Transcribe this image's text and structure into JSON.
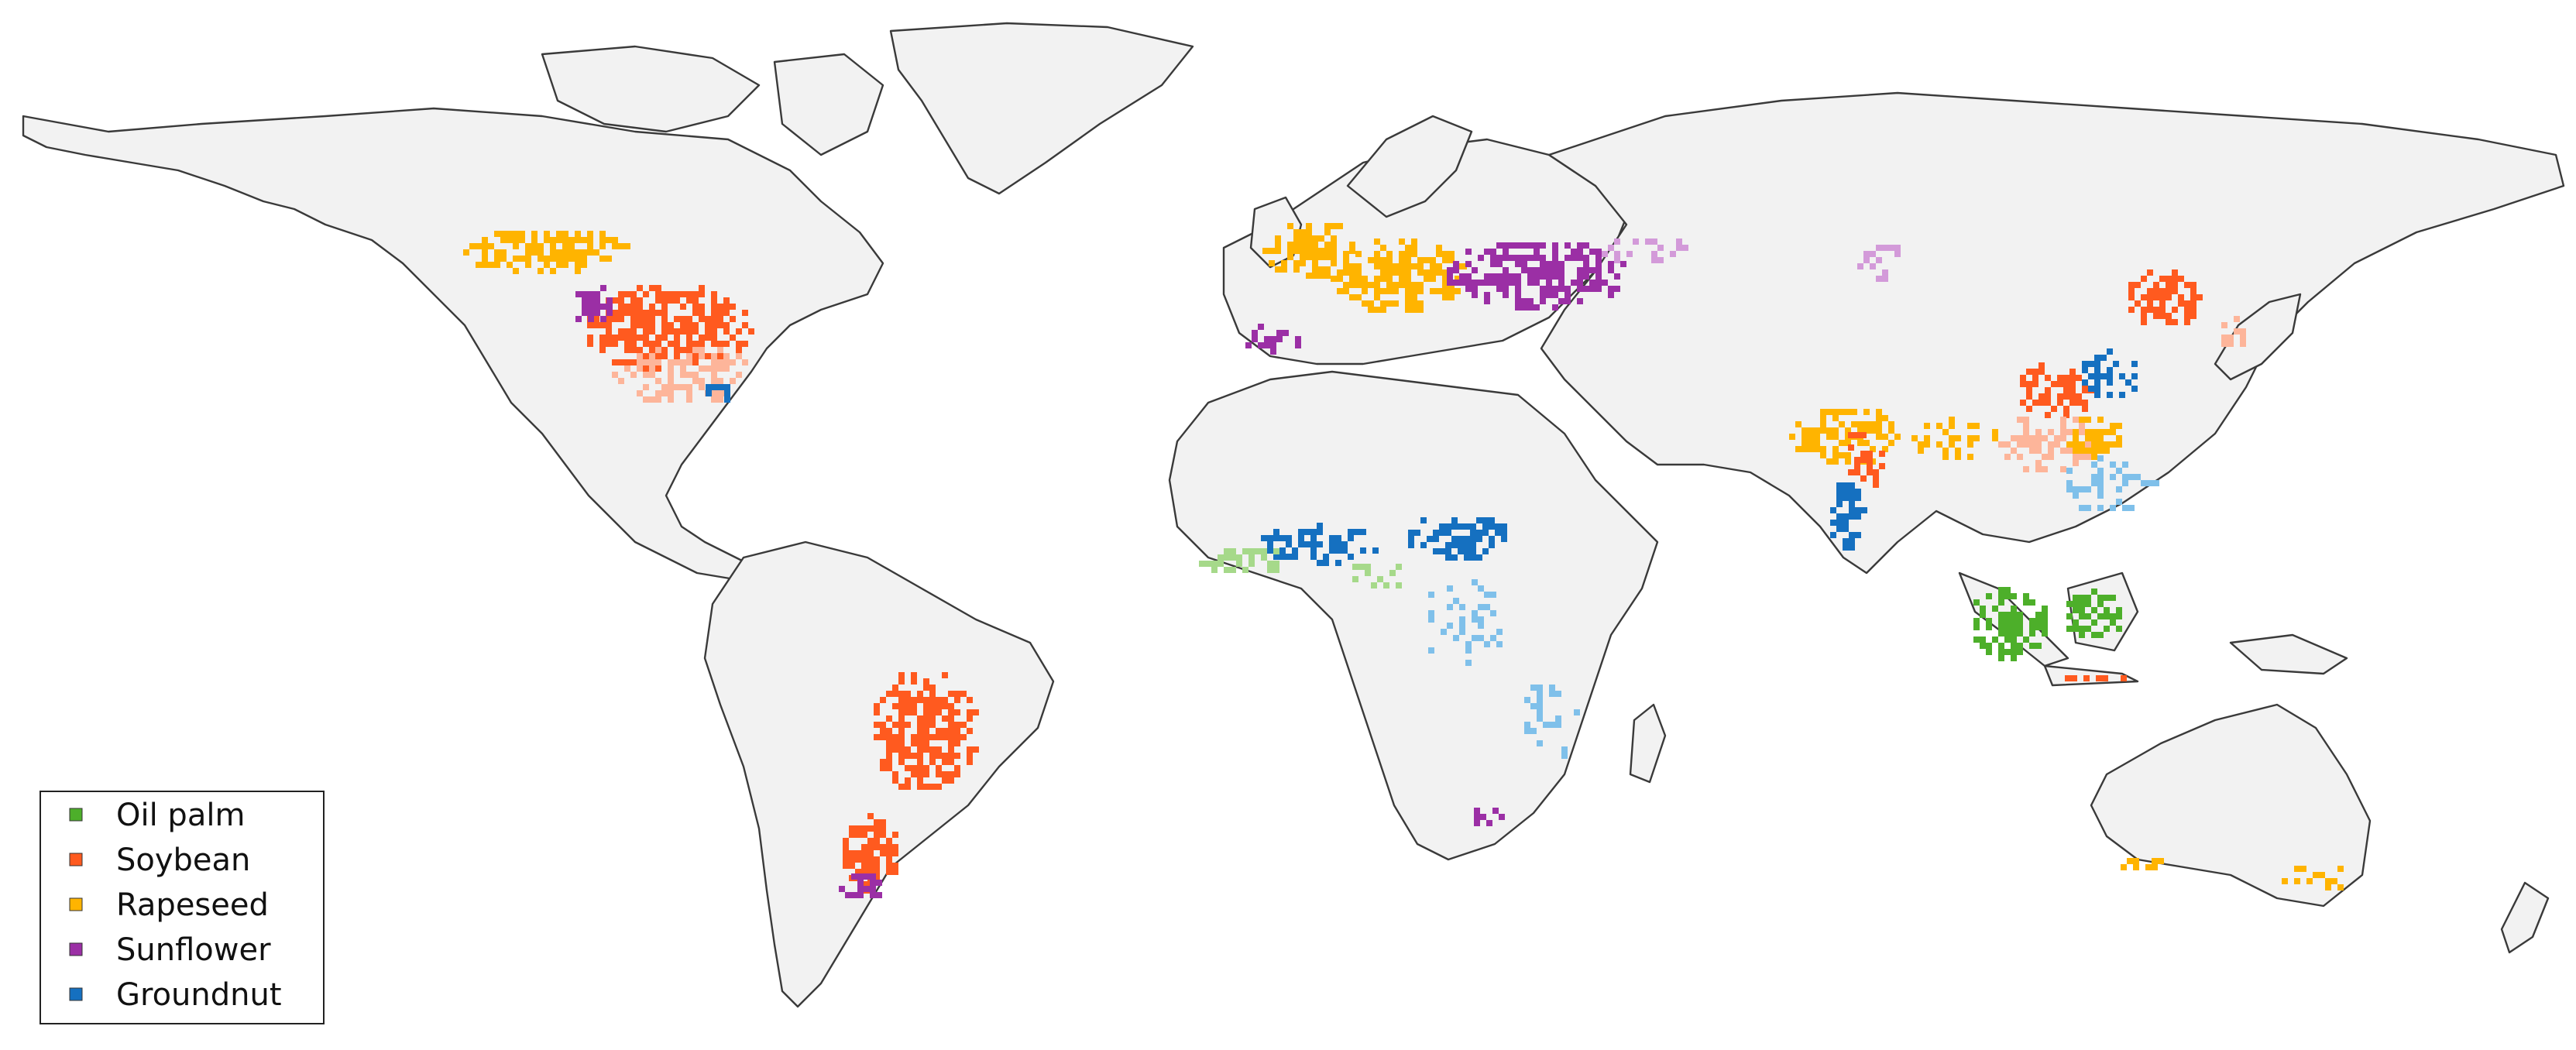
{
  "map": {
    "colors": {
      "ocean": "#ffffff",
      "land": "#f2f2f2",
      "coast": "#3a3a3a"
    },
    "projection": "world map",
    "legend": {
      "position": "bottom-left",
      "items": [
        {
          "label": "Oil palm",
          "color": "#4daf2a",
          "light_color": "#a6d98a",
          "icon": "square-swatch"
        },
        {
          "label": "Soybean",
          "color": "#ff5a1f",
          "light_color": "#fdb59a",
          "icon": "square-swatch"
        },
        {
          "label": "Rapeseed",
          "color": "#ffb400",
          "light_color": "#ffd97a",
          "icon": "square-swatch"
        },
        {
          "label": "Sunflower",
          "color": "#9b2fa5",
          "light_color": "#d39ad9",
          "icon": "square-swatch"
        },
        {
          "label": "Groundnut",
          "color": "#1570c0",
          "light_color": "#7fc0ea",
          "icon": "square-swatch"
        }
      ]
    }
  }
}
